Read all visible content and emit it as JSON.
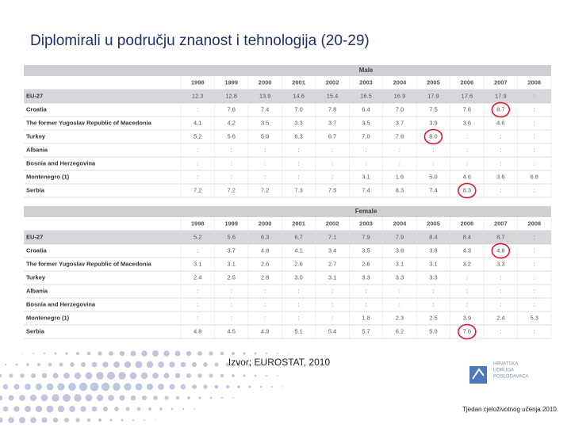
{
  "title": "Diplomirali u području znanost i tehnologija (20-29)",
  "tables": [
    {
      "header": "Male",
      "years": [
        1998,
        1999,
        2000,
        2001,
        2002,
        2003,
        2004,
        2005,
        2006,
        2007,
        2008
      ],
      "rows": [
        {
          "label": "EU-27",
          "values": [
            "12.3",
            "12.8",
            "13.9",
            "14.6",
            "15.4",
            "16.5",
            "16.9",
            "17.9",
            "17.6",
            "17.9",
            ":"
          ]
        },
        {
          "label": "Croatia",
          "values": [
            ":",
            "7.6",
            "7.4",
            "7.0",
            "7.8",
            "6.4",
            "7.0",
            "7.5",
            "7.6",
            "8.7",
            ":"
          ]
        },
        {
          "label": "The former Yugoslav Republic of Macedonia",
          "values": [
            "4.1",
            "4.2",
            "3.5",
            "3.3",
            "3.7",
            "3.5",
            "3.7",
            "3.9",
            "3.6",
            "4.6",
            ":"
          ]
        },
        {
          "label": "Turkey",
          "values": [
            "5.2",
            "5.6",
            "5.9",
            "6.3",
            "6.7",
            "7.0",
            "7.6",
            "8.0",
            ":",
            ":",
            ":"
          ]
        },
        {
          "label": "Albania",
          "values": [
            ":",
            ":",
            ":",
            ":",
            ":",
            ":",
            ":",
            ":",
            ":",
            ":",
            ":"
          ]
        },
        {
          "label": "Bosnia and Herzegovina",
          "values": [
            ":",
            ":",
            ":",
            ":",
            ":",
            ":",
            ":",
            ":",
            ":",
            ":",
            ":"
          ]
        },
        {
          "label": "Montenegro (1)",
          "values": [
            ":",
            ":",
            ":",
            ":",
            ":",
            "3.1",
            "1.6",
            "5.0",
            "4.6",
            "3.6",
            "6.8"
          ]
        },
        {
          "label": "Serbia",
          "values": [
            "7.2",
            "7.2",
            "7.2",
            "7.3",
            "7.5",
            "7.4",
            "8.3",
            "7.4",
            "8.3",
            ":",
            ":"
          ]
        }
      ]
    },
    {
      "header": "Female",
      "years": [
        1998,
        1999,
        2000,
        2001,
        2002,
        2003,
        2004,
        2005,
        2006,
        2007,
        2008
      ],
      "rows": [
        {
          "label": "EU-27",
          "values": [
            "5.2",
            "5.6",
            "6.3",
            "6.7",
            "7.1",
            "7.9",
            "7.9",
            "8.4",
            "8.4",
            "8.7",
            ":"
          ]
        },
        {
          "label": "Croatia",
          "values": [
            ":",
            "3.7",
            "4.8",
            "4.1",
            "3.4",
            "3.5",
            "3.6",
            "3.8",
            "4.3",
            "4.8",
            ":"
          ]
        },
        {
          "label": "The former Yugoslav Republic of Macedonia",
          "values": [
            "3.1",
            "3.1",
            "2.6",
            "2.6",
            "2.7",
            "2.6",
            "3.1",
            "3.1",
            "3.2",
            "3.3",
            ":"
          ]
        },
        {
          "label": "Turkey",
          "values": [
            "2.4",
            "2.5",
            "2.8",
            "3.0",
            "3.1",
            "3.3",
            "3.3",
            "3.3",
            ":",
            ":",
            ":"
          ]
        },
        {
          "label": "Albania",
          "values": [
            ":",
            ":",
            ":",
            ":",
            ":",
            ":",
            ":",
            ":",
            ":",
            ":",
            ":"
          ]
        },
        {
          "label": "Bosnia and Herzegovina",
          "values": [
            ":",
            ":",
            ":",
            ":",
            ":",
            ":",
            ":",
            ":",
            ":",
            ":",
            ":"
          ]
        },
        {
          "label": "Montenegro (1)",
          "values": [
            ":",
            ":",
            ":",
            ":",
            ":",
            "1.8",
            "2.3",
            "2.5",
            "3.9",
            "2.4",
            "5.3"
          ]
        },
        {
          "label": "Serbia",
          "values": [
            "4.8",
            "4.5",
            "4.9",
            "5.1",
            "5.4",
            "5.7",
            "6.2",
            "5.0",
            "7.6",
            ":",
            ":"
          ]
        }
      ]
    }
  ],
  "source": "Izvor; EUROSTAT, 2010",
  "logo": [
    "HRVATSKA",
    "UDRUGA",
    "POSLODAVACA"
  ],
  "footer": "Tjedan cjeloživotnog učenja 2010."
}
